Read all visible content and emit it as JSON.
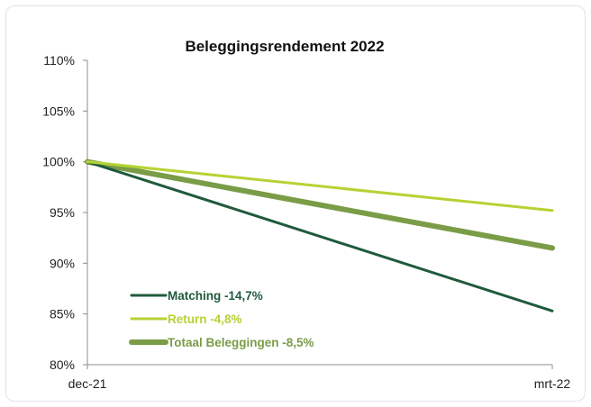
{
  "chart_data": {
    "type": "line",
    "title": "Beleggingsrendement 2022",
    "xlabel": "",
    "ylabel": "",
    "categories": [
      "dec-21",
      "mrt-22"
    ],
    "ylim": [
      80,
      110
    ],
    "yticks": [
      80,
      85,
      90,
      95,
      100,
      105,
      110
    ],
    "ytick_labels": [
      "80%",
      "85%",
      "90%",
      "95%",
      "100%",
      "105%",
      "110%"
    ],
    "grid": false,
    "legend_position": "bottom-left",
    "series": [
      {
        "name": "Matching -14,7%",
        "values": [
          100,
          85.3
        ],
        "color": "#1f5a3c",
        "width": 3
      },
      {
        "name": "Return -4,8%",
        "values": [
          100,
          95.2
        ],
        "color": "#b5d334",
        "width": 3
      },
      {
        "name": "Totaal Beleggingen -8,5%",
        "values": [
          100,
          91.5
        ],
        "color": "#7a9c47",
        "width": 6
      }
    ]
  }
}
